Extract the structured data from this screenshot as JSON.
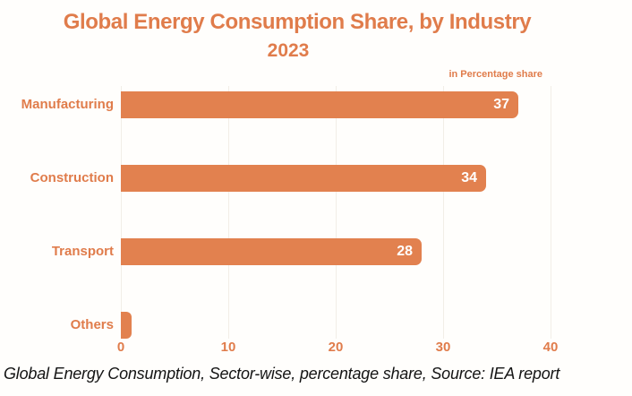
{
  "header": {
    "title": "Global Energy Consumption Share, by Industry",
    "subtitle": "2023",
    "unit_note": "in Percentage share"
  },
  "caption": "Global Energy Consumption, Sector-wise, percentage share, Source: IEA report",
  "chart_data": {
    "type": "bar",
    "orientation": "horizontal",
    "title": "Global Energy Consumption Share, by Industry",
    "subtitle": "2023",
    "unit_note": "in Percentage share",
    "categories": [
      "Manufacturing",
      "Construction",
      "Transport",
      "Others"
    ],
    "values": [
      37,
      34,
      28,
      1
    ],
    "value_labels_shown": [
      true,
      true,
      true,
      false
    ],
    "x_ticks": [
      0,
      10,
      20,
      30,
      40
    ],
    "xlim": [
      0,
      46
    ],
    "xlabel": "",
    "ylabel": "",
    "grid": "vertical",
    "legend": "none",
    "colors": {
      "bar": "#E2814F",
      "accent_text": "#E07C4B",
      "value_label": "#FFFFFF",
      "gridline": "#F2EEE7",
      "caption": "#141414",
      "background": "#FFFEFC"
    }
  }
}
